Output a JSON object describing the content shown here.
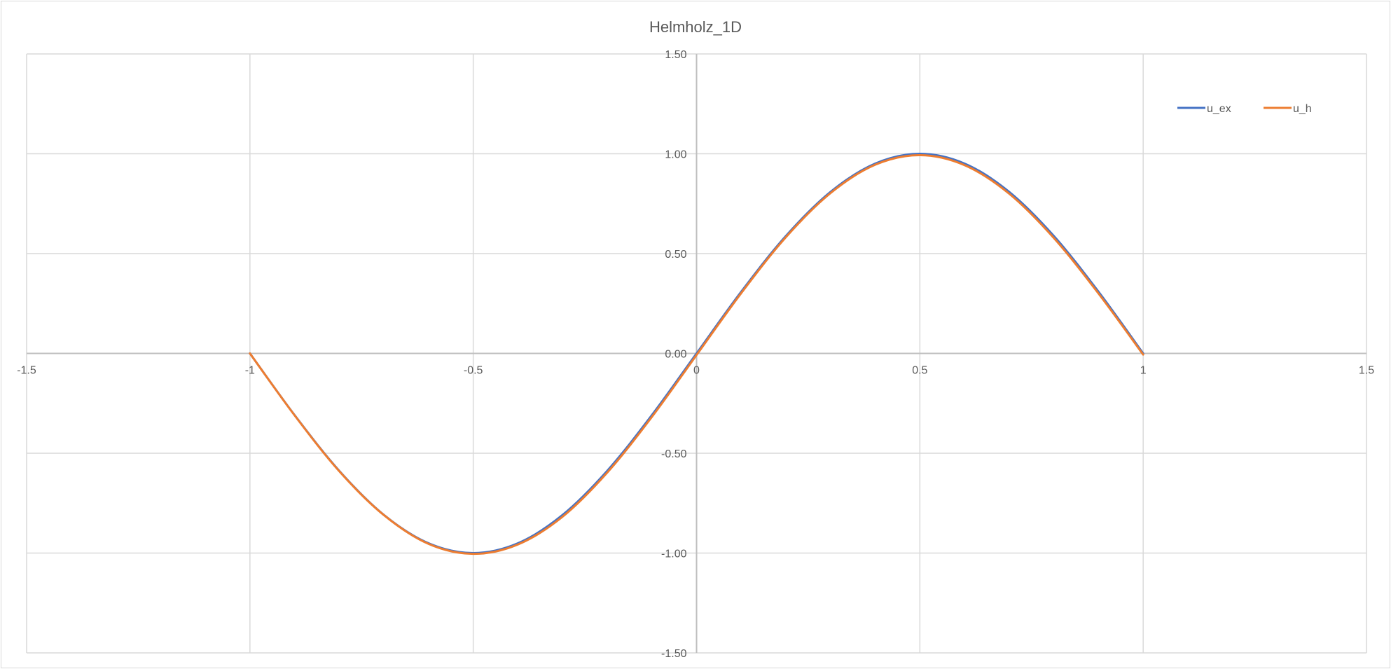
{
  "chart_data": {
    "type": "scatter",
    "title": "Helmholz_1D",
    "xlabel": "",
    "ylabel": "",
    "xlim": [
      -1.5,
      1.5
    ],
    "ylim": [
      -1.5,
      1.5
    ],
    "x_ticks": [
      "-1.5",
      "-1",
      "-0.5",
      "0",
      "0.5",
      "1",
      "1.5"
    ],
    "y_ticks": [
      "1.50",
      "1.00",
      "0.50",
      "0.00",
      "-0.50",
      "-1.00",
      "-1.50"
    ],
    "grid": true,
    "legend_position": "top-right",
    "series": [
      {
        "name": "u_ex",
        "color": "#4472C4",
        "x": [
          -1.0,
          -0.9,
          -0.8,
          -0.7,
          -0.6,
          -0.5,
          -0.4,
          -0.3,
          -0.2,
          -0.1,
          0.0,
          0.1,
          0.2,
          0.3,
          0.4,
          0.5,
          0.6,
          0.7,
          0.8,
          0.9,
          1.0
        ],
        "y": [
          0.0,
          -0.309,
          -0.588,
          -0.809,
          -0.951,
          -1.0,
          -0.951,
          -0.809,
          -0.588,
          -0.309,
          0.0,
          0.309,
          0.588,
          0.809,
          0.951,
          1.0,
          0.951,
          0.809,
          0.588,
          0.309,
          0.0
        ]
      },
      {
        "name": "u_h",
        "color": "#ED7D31",
        "x": [
          -1.0,
          -0.9,
          -0.8,
          -0.7,
          -0.6,
          -0.5,
          -0.4,
          -0.3,
          -0.2,
          -0.1,
          0.0,
          0.1,
          0.2,
          0.3,
          0.4,
          0.5,
          0.6,
          0.7,
          0.8,
          0.9,
          1.0
        ],
        "y": [
          0.0,
          -0.31,
          -0.59,
          -0.81,
          -0.954,
          -1.004,
          -0.957,
          -0.818,
          -0.597,
          -0.318,
          -0.008,
          0.302,
          0.582,
          0.803,
          0.945,
          0.993,
          0.943,
          0.8,
          0.578,
          0.3,
          -0.006
        ]
      }
    ]
  }
}
